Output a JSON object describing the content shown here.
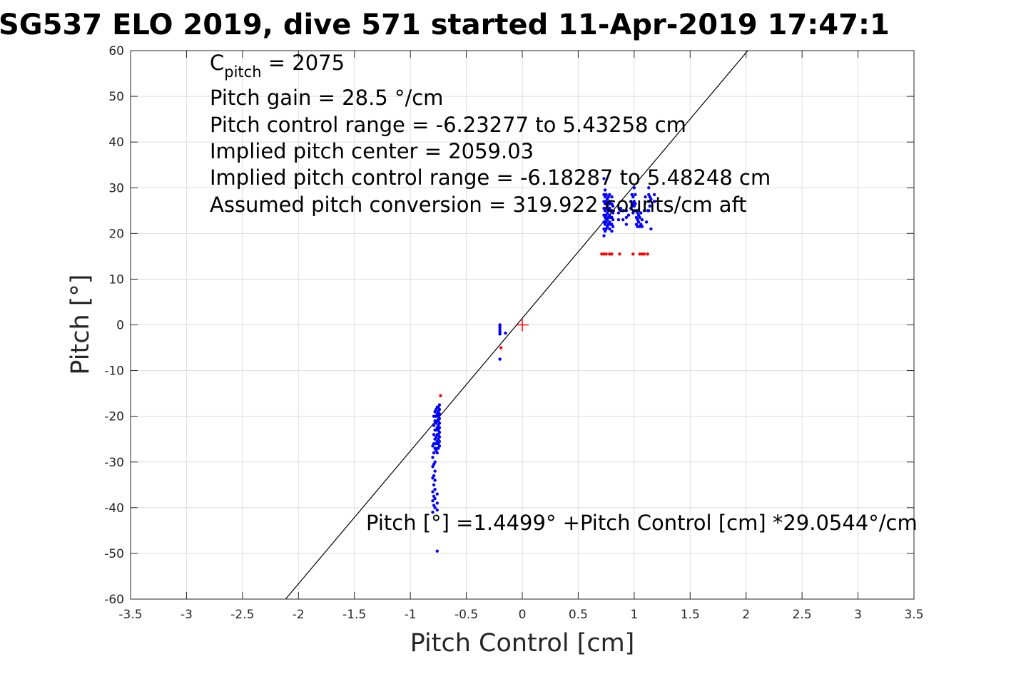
{
  "chart_data": {
    "type": "scatter",
    "title": "SG537 ELO 2019, dive 571 started 11-Apr-2019 17:47:1",
    "xlabel": "Pitch Control [cm]",
    "ylabel": "Pitch [°]",
    "xlim": [
      -3.5,
      3.5
    ],
    "ylim": [
      -60,
      60
    ],
    "xticks": [
      -3.5,
      -3,
      -2.5,
      -2,
      -1.5,
      -1,
      -0.5,
      0,
      0.5,
      1,
      1.5,
      2,
      2.5,
      3,
      3.5
    ],
    "yticks": [
      -60,
      -50,
      -40,
      -30,
      -20,
      -10,
      0,
      10,
      20,
      30,
      40,
      50,
      60
    ],
    "xtick_labels": [
      "-3.5",
      "-3",
      "-2.5",
      "-2",
      "-1.5",
      "-1",
      "-0.5",
      "0",
      "0.5",
      "1",
      "1.5",
      "2",
      "2.5",
      "3",
      "3.5"
    ],
    "ytick_labels": [
      "-60",
      "-50",
      "-40",
      "-30",
      "-20",
      "-10",
      "0",
      "10",
      "20",
      "30",
      "40",
      "50",
      "60"
    ],
    "grid": true,
    "colors": {
      "series_blue": "#0000ff",
      "series_red": "#ff0000",
      "fit_line": "#000000",
      "grid": "#dedede",
      "axes": "#262626"
    },
    "annotation_lines": {
      "c_pitch_symbol": "C",
      "c_pitch_subscript": "pitch",
      "c_pitch_value": " = 2075",
      "pitch_gain": "Pitch gain = 28.5 °/cm",
      "control_range": "Pitch control range = -6.23277 to 5.43258 cm",
      "implied_center": "Implied pitch center = 2059.03",
      "implied_range": "Implied pitch control range = -6.18287 to 5.48248 cm",
      "conversion": "Assumed pitch conversion = 319.922 counts/cm aft"
    },
    "fit_equation": "Pitch [°] =1.4499° +Pitch Control [cm] *29.0544°/cm",
    "fit": {
      "intercept": 1.4499,
      "slope": 29.0544
    },
    "center_marker": {
      "x": 0,
      "y": 0
    },
    "blue_points": [
      [
        -0.74,
        -17.5
      ],
      [
        -0.74,
        -18.5
      ],
      [
        -0.74,
        -19.5
      ],
      [
        -0.74,
        -20.5
      ],
      [
        -0.74,
        -21.5
      ],
      [
        -0.74,
        -22.5
      ],
      [
        -0.74,
        -23.5
      ],
      [
        -0.74,
        -24.5
      ],
      [
        -0.74,
        -25.5
      ],
      [
        -0.74,
        -26.5
      ],
      [
        -0.75,
        -18.0
      ],
      [
        -0.75,
        -19.0
      ],
      [
        -0.75,
        -20.0
      ],
      [
        -0.75,
        -21.0
      ],
      [
        -0.75,
        -22.0
      ],
      [
        -0.75,
        -23.0
      ],
      [
        -0.75,
        -24.0
      ],
      [
        -0.75,
        -25.0
      ],
      [
        -0.75,
        -26.0
      ],
      [
        -0.75,
        -27.0
      ],
      [
        -0.76,
        -18.0
      ],
      [
        -0.76,
        -19.5
      ],
      [
        -0.76,
        -21.0
      ],
      [
        -0.76,
        -22.5
      ],
      [
        -0.76,
        -24.0
      ],
      [
        -0.76,
        -25.5
      ],
      [
        -0.76,
        -27.0
      ],
      [
        -0.76,
        -28.0
      ],
      [
        -0.77,
        -18.5
      ],
      [
        -0.77,
        -20.0
      ],
      [
        -0.77,
        -21.5
      ],
      [
        -0.77,
        -23.0
      ],
      [
        -0.77,
        -24.5
      ],
      [
        -0.77,
        -26.0
      ],
      [
        -0.77,
        -27.5
      ],
      [
        -0.78,
        -19.0
      ],
      [
        -0.78,
        -21.0
      ],
      [
        -0.78,
        -23.0
      ],
      [
        -0.78,
        -25.0
      ],
      [
        -0.78,
        -27.0
      ],
      [
        -0.78,
        -30.0
      ],
      [
        -0.78,
        -32.0
      ],
      [
        -0.78,
        -34.0
      ],
      [
        -0.78,
        -36.0
      ],
      [
        -0.78,
        -38.0
      ],
      [
        -0.78,
        -40.0
      ],
      [
        -0.79,
        -20.0
      ],
      [
        -0.79,
        -22.0
      ],
      [
        -0.79,
        -24.0
      ],
      [
        -0.79,
        -26.0
      ],
      [
        -0.79,
        -28.0
      ],
      [
        -0.79,
        -30.5
      ],
      [
        -0.79,
        -33.0
      ],
      [
        -0.79,
        -35.0
      ],
      [
        -0.79,
        -37.5
      ],
      [
        -0.79,
        -39.5
      ],
      [
        -0.8,
        -26.5
      ],
      [
        -0.8,
        -29.0
      ],
      [
        -0.8,
        -31.0
      ],
      [
        -0.8,
        -33.5
      ],
      [
        -0.8,
        -36.5
      ],
      [
        -0.8,
        -38.5
      ],
      [
        -0.8,
        -41.0
      ],
      [
        -0.76,
        -37.0
      ],
      [
        -0.76,
        -39.0
      ],
      [
        -0.76,
        -40.5
      ],
      [
        -0.76,
        -49.5
      ],
      [
        -0.2,
        0.0
      ],
      [
        -0.2,
        -0.5
      ],
      [
        -0.2,
        -1.0
      ],
      [
        -0.2,
        -1.5
      ],
      [
        -0.2,
        -2.0
      ],
      [
        -0.15,
        -1.8
      ],
      [
        -0.2,
        -7.5
      ],
      [
        0.73,
        19.5
      ],
      [
        0.73,
        21.0
      ],
      [
        0.73,
        22.5
      ],
      [
        0.73,
        24.0
      ],
      [
        0.73,
        25.5
      ],
      [
        0.73,
        27.0
      ],
      [
        0.73,
        28.5
      ],
      [
        0.73,
        32.0
      ],
      [
        0.74,
        20.5
      ],
      [
        0.74,
        22.0
      ],
      [
        0.74,
        23.5
      ],
      [
        0.74,
        25.0
      ],
      [
        0.74,
        26.5
      ],
      [
        0.74,
        28.0
      ],
      [
        0.74,
        29.5
      ],
      [
        0.75,
        21.0
      ],
      [
        0.75,
        22.5
      ],
      [
        0.75,
        24.0
      ],
      [
        0.75,
        25.5
      ],
      [
        0.75,
        27.0
      ],
      [
        0.75,
        28.5
      ],
      [
        0.76,
        21.5
      ],
      [
        0.76,
        23.0
      ],
      [
        0.76,
        24.5
      ],
      [
        0.76,
        26.0
      ],
      [
        0.76,
        27.5
      ],
      [
        0.77,
        22.0
      ],
      [
        0.77,
        23.5
      ],
      [
        0.77,
        25.0
      ],
      [
        0.77,
        26.5
      ],
      [
        0.77,
        28.0
      ],
      [
        0.78,
        21.0
      ],
      [
        0.78,
        22.5
      ],
      [
        0.78,
        24.0
      ],
      [
        0.78,
        25.5
      ],
      [
        0.78,
        27.0
      ],
      [
        0.78,
        28.5
      ],
      [
        0.79,
        22.0
      ],
      [
        0.79,
        23.5
      ],
      [
        0.79,
        25.0
      ],
      [
        0.79,
        26.5
      ],
      [
        0.8,
        20.5
      ],
      [
        0.8,
        22.0
      ],
      [
        0.8,
        23.5
      ],
      [
        0.8,
        25.0
      ],
      [
        0.8,
        26.5
      ],
      [
        0.8,
        28.0
      ],
      [
        0.81,
        21.5
      ],
      [
        0.81,
        23.0
      ],
      [
        0.81,
        24.5
      ],
      [
        0.81,
        26.0
      ],
      [
        0.86,
        23.0
      ],
      [
        0.86,
        24.5
      ],
      [
        0.88,
        25.5
      ],
      [
        0.9,
        23.0
      ],
      [
        0.9,
        25.0
      ],
      [
        0.93,
        22.0
      ],
      [
        0.93,
        23.5
      ],
      [
        0.93,
        25.0
      ],
      [
        0.95,
        24.0
      ],
      [
        0.97,
        25.5
      ],
      [
        0.97,
        27.0
      ],
      [
        0.98,
        26.0
      ],
      [
        0.98,
        28.5
      ],
      [
        0.99,
        24.5
      ],
      [
        0.99,
        26.5
      ],
      [
        0.99,
        28.0
      ],
      [
        1.0,
        25.0
      ],
      [
        1.0,
        26.0
      ],
      [
        1.0,
        27.0
      ],
      [
        1.0,
        30.0
      ],
      [
        1.01,
        26.5
      ],
      [
        1.01,
        28.5
      ],
      [
        1.02,
        22.0
      ],
      [
        1.02,
        23.5
      ],
      [
        1.02,
        25.0
      ],
      [
        1.03,
        21.5
      ],
      [
        1.03,
        23.0
      ],
      [
        1.03,
        24.5
      ],
      [
        1.04,
        22.5
      ],
      [
        1.04,
        24.0
      ],
      [
        1.05,
        21.5
      ],
      [
        1.05,
        23.5
      ],
      [
        1.06,
        22.0
      ],
      [
        1.06,
        24.5
      ],
      [
        1.07,
        21.5
      ],
      [
        1.07,
        23.0
      ],
      [
        1.09,
        25.0
      ],
      [
        1.1,
        28.0
      ],
      [
        1.11,
        22.5
      ],
      [
        1.12,
        25.0
      ],
      [
        1.13,
        25.0
      ],
      [
        1.13,
        27.0
      ],
      [
        1.13,
        28.5
      ],
      [
        1.13,
        30.0
      ],
      [
        1.14,
        26.0
      ],
      [
        1.14,
        28.0
      ],
      [
        1.15,
        21.0
      ],
      [
        1.15,
        27.5
      ],
      [
        1.18,
        27.0
      ],
      [
        1.18,
        28.5
      ]
    ],
    "red_points": [
      [
        -0.73,
        -15.5
      ],
      [
        -0.19,
        -5.0
      ],
      [
        0.71,
        15.5
      ],
      [
        0.73,
        15.5
      ],
      [
        0.75,
        15.5
      ],
      [
        0.78,
        15.5
      ],
      [
        0.8,
        15.5
      ],
      [
        0.87,
        15.5
      ],
      [
        0.99,
        15.5
      ],
      [
        1.05,
        15.5
      ],
      [
        1.07,
        15.5
      ],
      [
        1.09,
        15.5
      ],
      [
        1.12,
        15.5
      ]
    ]
  }
}
